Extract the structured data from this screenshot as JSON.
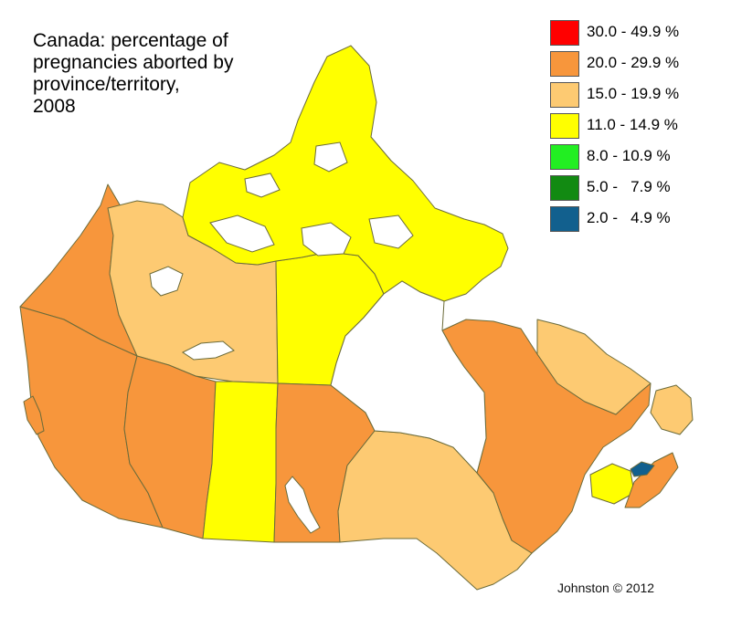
{
  "title": "Canada:  percentage of\npregnancies aborted by\nprovince/territory,\n2008",
  "credit": "Johnston © 2012",
  "legend": [
    {
      "label": "30.0 - 49.9 %",
      "color": "#ff0000"
    },
    {
      "label": "20.0 - 29.9 %",
      "color": "#f7963c"
    },
    {
      "label": "15.0 - 19.9 %",
      "color": "#fdca72"
    },
    {
      "label": "11.0 - 14.9 %",
      "color": "#ffff00"
    },
    {
      "label": "8.0 - 10.9 %",
      "color": "#22ee22"
    },
    {
      "label": "5.0 -   7.9 %",
      "color": "#128a12"
    },
    {
      "label": "2.0 -   4.9 %",
      "color": "#12608e"
    }
  ],
  "regions": [
    {
      "name": "British Columbia",
      "range": "20.0 - 29.9 %",
      "color": "#f7963c"
    },
    {
      "name": "Alberta",
      "range": "20.0 - 29.9 %",
      "color": "#f7963c"
    },
    {
      "name": "Saskatchewan",
      "range": "11.0 - 14.9 %",
      "color": "#ffff00"
    },
    {
      "name": "Manitoba",
      "range": "20.0 - 29.9 %",
      "color": "#f7963c"
    },
    {
      "name": "Ontario",
      "range": "15.0 - 19.9 %",
      "color": "#fdca72"
    },
    {
      "name": "Quebec",
      "range": "20.0 - 29.9 %",
      "color": "#f7963c"
    },
    {
      "name": "Newfoundland and Labrador",
      "range": "15.0 - 19.9 %",
      "color": "#fdca72"
    },
    {
      "name": "New Brunswick",
      "range": "11.0 - 14.9 %",
      "color": "#ffff00"
    },
    {
      "name": "Nova Scotia",
      "range": "20.0 - 29.9 %",
      "color": "#f7963c"
    },
    {
      "name": "Prince Edward Island",
      "range": "2.0 - 4.9 %",
      "color": "#12608e"
    },
    {
      "name": "Yukon",
      "range": "20.0 - 29.9 %",
      "color": "#f7963c"
    },
    {
      "name": "Northwest Territories",
      "range": "15.0 - 19.9 %",
      "color": "#fdca72"
    },
    {
      "name": "Nunavut",
      "range": "11.0 - 14.9 %",
      "color": "#ffff00"
    }
  ]
}
